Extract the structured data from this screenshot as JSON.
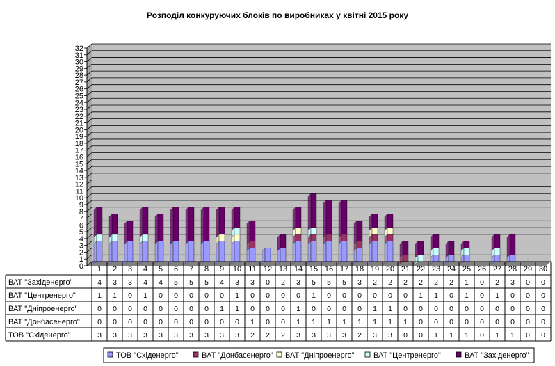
{
  "chart_data": {
    "type": "bar",
    "stacked": true,
    "title": "Розподіл конкуруючих блоків по виробниках у квітні 2015 року",
    "categories": [
      "1",
      "2",
      "3",
      "4",
      "5",
      "6",
      "7",
      "8",
      "9",
      "10",
      "11",
      "12",
      "13",
      "14",
      "15",
      "16",
      "17",
      "18",
      "19",
      "20",
      "21",
      "22",
      "23",
      "24",
      "25",
      "26",
      "27",
      "28",
      "29",
      "30"
    ],
    "ylim": [
      0,
      32
    ],
    "yticks": [
      "0",
      "1",
      "2",
      "3",
      "4",
      "5",
      "6",
      "7",
      "8",
      "9",
      "10",
      "11",
      "12",
      "13",
      "14",
      "15",
      "16",
      "17",
      "18",
      "19",
      "20",
      "21",
      "22",
      "23",
      "24",
      "25",
      "26",
      "27",
      "28",
      "29",
      "30",
      "31",
      "32"
    ],
    "grid": true,
    "legend_position": "bottom",
    "series": [
      {
        "name": "ТОВ \"Східенерго\"",
        "color": "#9999ff",
        "values": [
          3,
          3,
          3,
          3,
          3,
          3,
          3,
          3,
          3,
          3,
          2,
          2,
          2,
          3,
          3,
          3,
          3,
          2,
          3,
          3,
          0,
          0,
          1,
          1,
          1,
          0,
          1,
          1,
          0,
          0
        ]
      },
      {
        "name": "ВАТ \"Донбасенерго\"",
        "color": "#993366",
        "values": [
          0,
          0,
          0,
          0,
          0,
          0,
          0,
          0,
          0,
          0,
          1,
          0,
          0,
          1,
          1,
          1,
          1,
          1,
          1,
          1,
          1,
          0,
          0,
          0,
          0,
          0,
          0,
          0,
          0,
          0
        ]
      },
      {
        "name": "ВАТ \"Дніпроенерго\"",
        "color": "#ffffcc",
        "values": [
          0,
          0,
          0,
          0,
          0,
          0,
          0,
          0,
          1,
          1,
          0,
          0,
          0,
          1,
          0,
          0,
          0,
          0,
          1,
          1,
          0,
          0,
          0,
          0,
          0,
          0,
          0,
          0,
          0,
          0
        ]
      },
      {
        "name": "ВАТ \"Центренерго\"",
        "color": "#ccffff",
        "values": [
          1,
          1,
          0,
          1,
          0,
          0,
          0,
          0,
          0,
          1,
          0,
          0,
          0,
          0,
          1,
          0,
          0,
          0,
          0,
          0,
          0,
          1,
          1,
          0,
          1,
          0,
          1,
          0,
          0,
          0
        ]
      },
      {
        "name": "ВАТ \"Західенерго\"",
        "color": "#660066",
        "values": [
          4,
          3,
          3,
          4,
          4,
          5,
          5,
          5,
          4,
          3,
          3,
          0,
          2,
          3,
          5,
          5,
          5,
          3,
          2,
          2,
          2,
          2,
          2,
          2,
          1,
          0,
          2,
          3,
          0,
          0
        ]
      }
    ]
  }
}
